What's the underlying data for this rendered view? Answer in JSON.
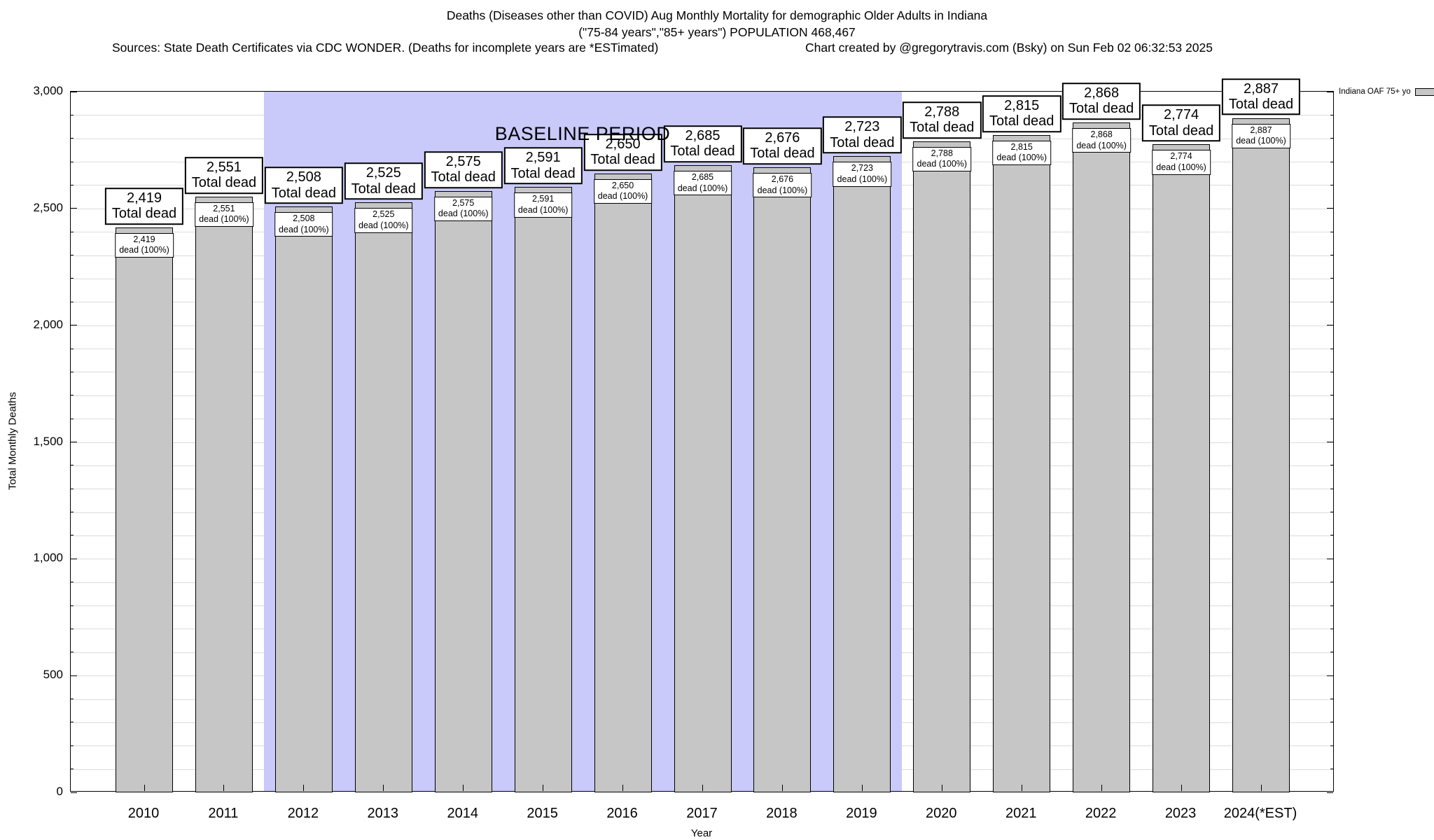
{
  "header": {
    "sources": "Sources: State Death Certificates via CDC WONDER. (Deaths for incomplete years are *ESTimated)",
    "credit": "Chart created by @gregorytravis.com (Bsky) on Sun Feb 02 06:32:53 2025"
  },
  "chart_data": {
    "type": "bar",
    "title": "Deaths (Diseases other than COVID) Aug Monthly Mortality for demographic Older Adults in Indiana",
    "subtitle": "(\"75-84 years\",\"85+ years\") POPULATION 468,467",
    "categories": [
      "2010",
      "2011",
      "2012",
      "2013",
      "2014",
      "2015",
      "2016",
      "2017",
      "2018",
      "2019",
      "2020",
      "2021",
      "2022",
      "2023",
      "2024(*EST)"
    ],
    "values": [
      2419,
      2551,
      2508,
      2525,
      2575,
      2591,
      2650,
      2685,
      2676,
      2723,
      2788,
      2815,
      2868,
      2774,
      2887
    ],
    "bar_label_top_suffix": "Total dead",
    "bar_label_inner_suffix": "dead (100%)",
    "xlabel": "Year",
    "ylabel": "Total Monthly Deaths",
    "ylim": [
      0,
      3000
    ],
    "ytick_interval": 500,
    "minor_gridline_interval": 100,
    "grid": true,
    "bar_color": "#c6c6c6",
    "legend": {
      "label": "Indiana OAF 75+ yo",
      "position": "top-right",
      "swatch_color": "#c6c6c6"
    },
    "annotation": {
      "text": "BASELINE PERIOD",
      "band_start_category": "2012",
      "band_end_category": "2019",
      "band_color": "#c9c9fa"
    }
  }
}
